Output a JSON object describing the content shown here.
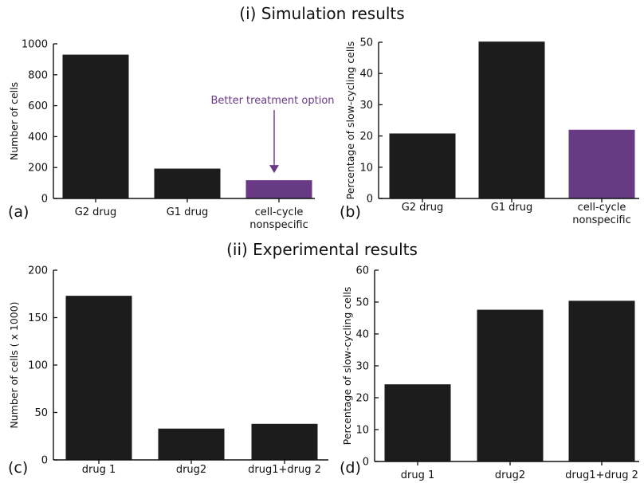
{
  "section_titles": [
    "(i) Simulation results",
    "(ii) Experimental results"
  ],
  "colors": {
    "bar": "#1c1c1c",
    "highlight": "#683a86"
  },
  "chart_data": [
    {
      "panel": "(a)",
      "type": "bar",
      "categories": [
        [
          "G2 drug"
        ],
        [
          "G1 drug"
        ],
        [
          "cell-cycle",
          "nonspecific"
        ]
      ],
      "values": [
        930,
        193,
        118
      ],
      "highlight_index": 2,
      "ylabel": "Number of cells",
      "ylim": [
        0,
        1000
      ],
      "yticks": [
        0,
        200,
        400,
        600,
        800,
        1000
      ],
      "annotation": {
        "text": "Better treatment option",
        "target_index": 2
      }
    },
    {
      "panel": "(b)",
      "type": "bar",
      "categories": [
        [
          "G2 drug"
        ],
        [
          "G1 drug"
        ],
        [
          "cell-cycle",
          "nonspecific"
        ]
      ],
      "values": [
        20.8,
        50.2,
        22
      ],
      "highlight_index": 2,
      "ylabel": "Percentage of slow-cycling cells",
      "ylim": [
        0,
        50
      ],
      "yticks": [
        0,
        10,
        20,
        30,
        40,
        50
      ]
    },
    {
      "panel": "(c)",
      "type": "bar",
      "categories": [
        [
          "drug 1"
        ],
        [
          "drug2"
        ],
        [
          "drug1+drug  2"
        ]
      ],
      "values": [
        173,
        33,
        38
      ],
      "ylabel": "Number of cells ( x 1000)",
      "ylim": [
        0,
        200
      ],
      "yticks": [
        0,
        50,
        100,
        150,
        200
      ]
    },
    {
      "panel": "(d)",
      "type": "bar",
      "categories": [
        [
          "drug 1"
        ],
        [
          "drug2"
        ],
        [
          "drug1+drug  2"
        ]
      ],
      "values": [
        24.2,
        47.6,
        50.4
      ],
      "ylabel": "Percentage of slow-cycling cells",
      "ylim": [
        0,
        60
      ],
      "yticks": [
        0,
        10,
        20,
        30,
        40,
        50,
        60
      ]
    }
  ]
}
